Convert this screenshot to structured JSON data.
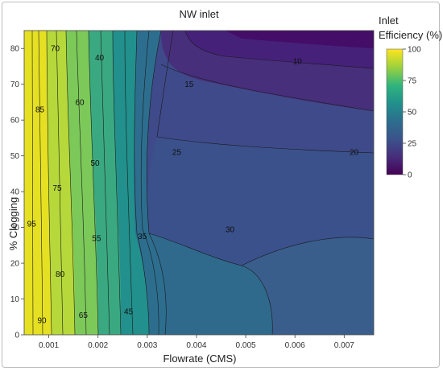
{
  "chart_data": {
    "type": "contour",
    "title": "NW inlet",
    "xlabel": "Flowrate (CMS)",
    "ylabel": "% Clogging",
    "xlim": [
      0.0005,
      0.0076
    ],
    "ylim": [
      0,
      85
    ],
    "x_ticks": [
      "0.001",
      "0.002",
      "0.003",
      "0.004",
      "0.005",
      "0.006",
      "0.007"
    ],
    "x_tick_values": [
      0.001,
      0.002,
      0.003,
      0.004,
      0.005,
      0.006,
      0.007
    ],
    "y_ticks": [
      "0",
      "10",
      "20",
      "30",
      "40",
      "50",
      "60",
      "70",
      "80"
    ],
    "y_tick_values": [
      0,
      10,
      20,
      30,
      40,
      50,
      60,
      70,
      80
    ],
    "colorbar": {
      "title_lines": [
        "Inlet",
        "Efficiency (%)"
      ],
      "range": [
        0,
        100
      ],
      "ticks": [
        "100",
        "75",
        "50",
        "25",
        "0"
      ],
      "tick_values": [
        100,
        75,
        50,
        25,
        0
      ],
      "colors": [
        "#ffe41e",
        "#9fd23c",
        "#2fb47d",
        "#21918c",
        "#2c6f8e",
        "#3b528b",
        "#472d7b",
        "#440154"
      ]
    },
    "contour_labels": [
      {
        "text": "70",
        "x": 0.00113,
        "y": 80.0
      },
      {
        "text": "40",
        "x": 0.00203,
        "y": 77.5
      },
      {
        "text": "10",
        "x": 0.00605,
        "y": 76.5
      },
      {
        "text": "15",
        "x": 0.00385,
        "y": 70.0
      },
      {
        "text": "85",
        "x": 0.00082,
        "y": 63.0
      },
      {
        "text": "60",
        "x": 0.00163,
        "y": 65.0
      },
      {
        "text": "25",
        "x": 0.0036,
        "y": 51.0
      },
      {
        "text": "20",
        "x": 0.0072,
        "y": 51.0
      },
      {
        "text": "50",
        "x": 0.00194,
        "y": 48.0
      },
      {
        "text": "75",
        "x": 0.00117,
        "y": 41.0
      },
      {
        "text": "95",
        "x": 0.00065,
        "y": 31.0
      },
      {
        "text": "35",
        "x": 0.0029,
        "y": 27.5
      },
      {
        "text": "30",
        "x": 0.00468,
        "y": 29.5
      },
      {
        "text": "55",
        "x": 0.00197,
        "y": 27.0
      },
      {
        "text": "80",
        "x": 0.00123,
        "y": 17.0
      },
      {
        "text": "45",
        "x": 0.00262,
        "y": 6.5
      },
      {
        "text": "65",
        "x": 0.0017,
        "y": 5.5
      },
      {
        "text": "90",
        "x": 0.00086,
        "y": 4.0
      }
    ]
  }
}
